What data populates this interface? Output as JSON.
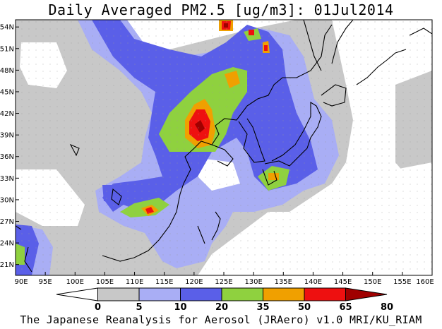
{
  "header": {
    "title": "Daily Averaged PM2.5 [ug/m3]: 01Jul2014"
  },
  "footer": {
    "caption": "The Japanese Reanalysis for Aerosol (JRAero) v1.0 MRI/KU_RIAM"
  },
  "map": {
    "lon_range": [
      90,
      160
    ],
    "lat_range": [
      19.5,
      55
    ],
    "lon_ticks": [
      "90E",
      "95E",
      "100E",
      "105E",
      "110E",
      "115E",
      "120E",
      "125E",
      "130E",
      "135E",
      "140E",
      "145E",
      "150E",
      "155E",
      "160E"
    ],
    "lat_ticks": [
      "21N",
      "24N",
      "27N",
      "30N",
      "33N",
      "36N",
      "39N",
      "42N",
      "45N",
      "48N",
      "51N",
      "54N"
    ]
  },
  "colorbar": {
    "levels": [
      "0",
      "5",
      "10",
      "20",
      "35",
      "50",
      "65",
      "80"
    ],
    "colors": [
      "#ffffff",
      "#c8c8c8",
      "#a9aef5",
      "#5a5fe8",
      "#8fd13f",
      "#f0a000",
      "#ee1010",
      "#a00000"
    ]
  }
}
